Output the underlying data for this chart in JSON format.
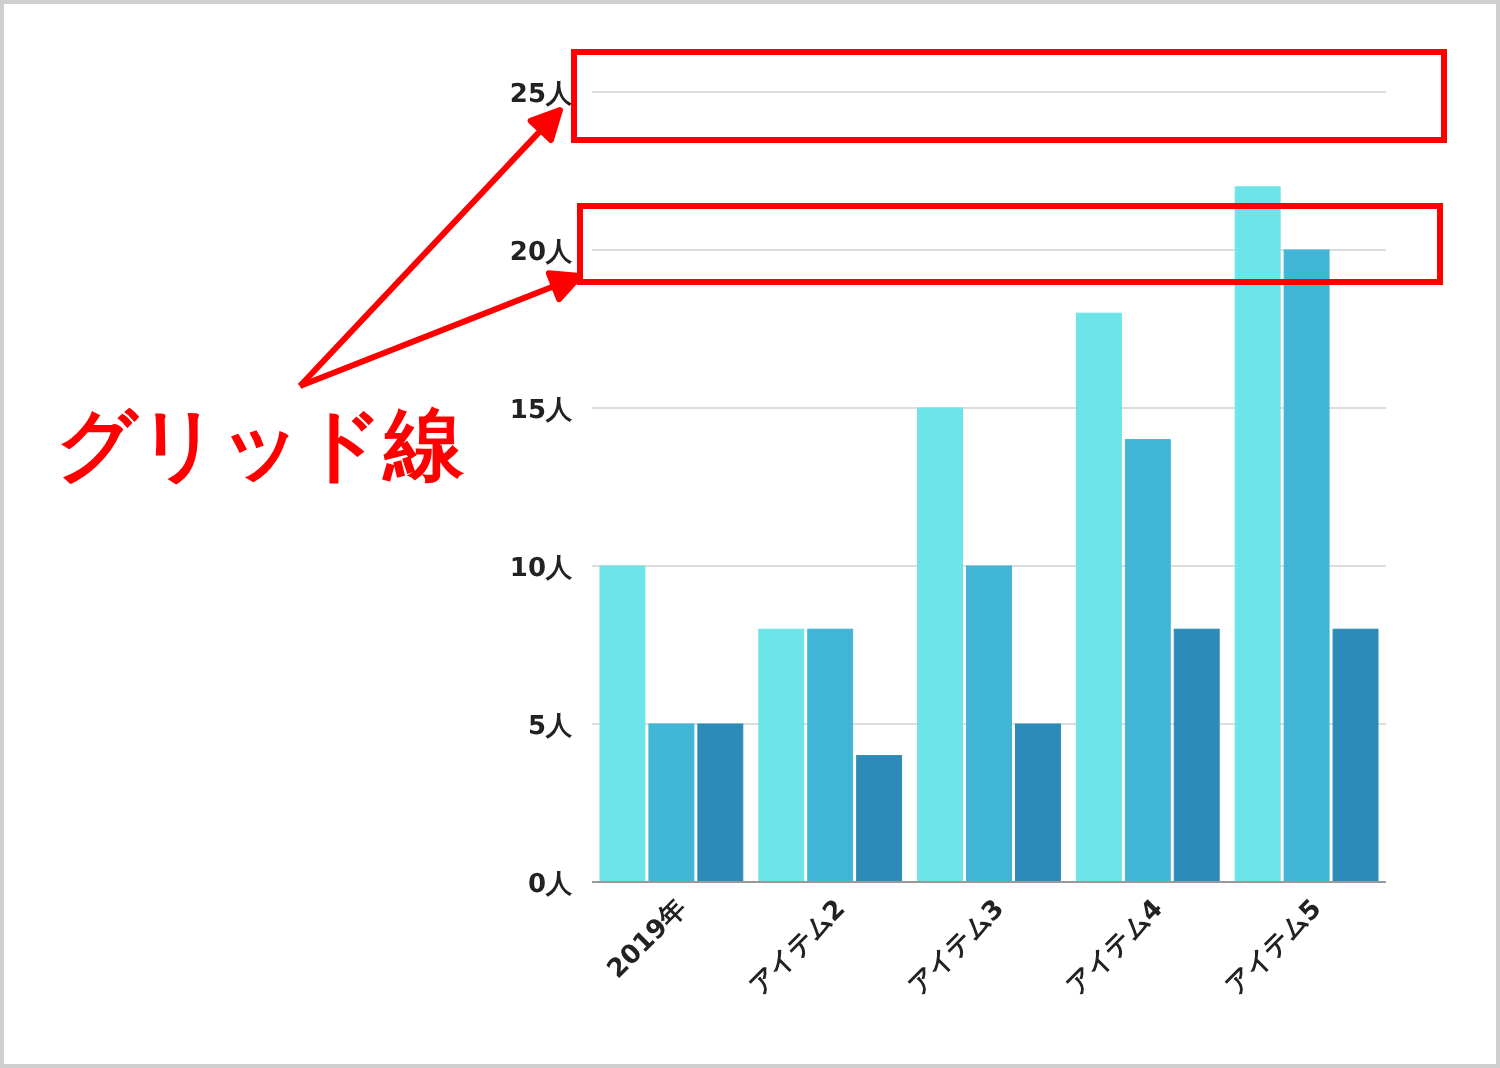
{
  "chart_data": {
    "type": "bar",
    "categories": [
      "2019年",
      "アイテム2",
      "アイテム3",
      "アイテム4",
      "アイテム5"
    ],
    "series": [
      {
        "color": "#6ce4e8",
        "values": [
          10,
          8,
          15,
          18,
          22
        ]
      },
      {
        "color": "#41b5d6",
        "values": [
          5,
          8,
          10,
          14,
          20
        ]
      },
      {
        "color": "#2c8bb9",
        "values": [
          5,
          4,
          5,
          8,
          8
        ]
      }
    ],
    "ylim": [
      0,
      25
    ],
    "yticks": [
      {
        "value": 0,
        "label": "0人"
      },
      {
        "value": 5,
        "label": "5人"
      },
      {
        "value": 10,
        "label": "10人"
      },
      {
        "value": 15,
        "label": "15人"
      },
      {
        "value": 20,
        "label": "20人"
      },
      {
        "value": 25,
        "label": "25人"
      }
    ],
    "grid": "y",
    "annotations": [
      "グリッド線"
    ]
  }
}
